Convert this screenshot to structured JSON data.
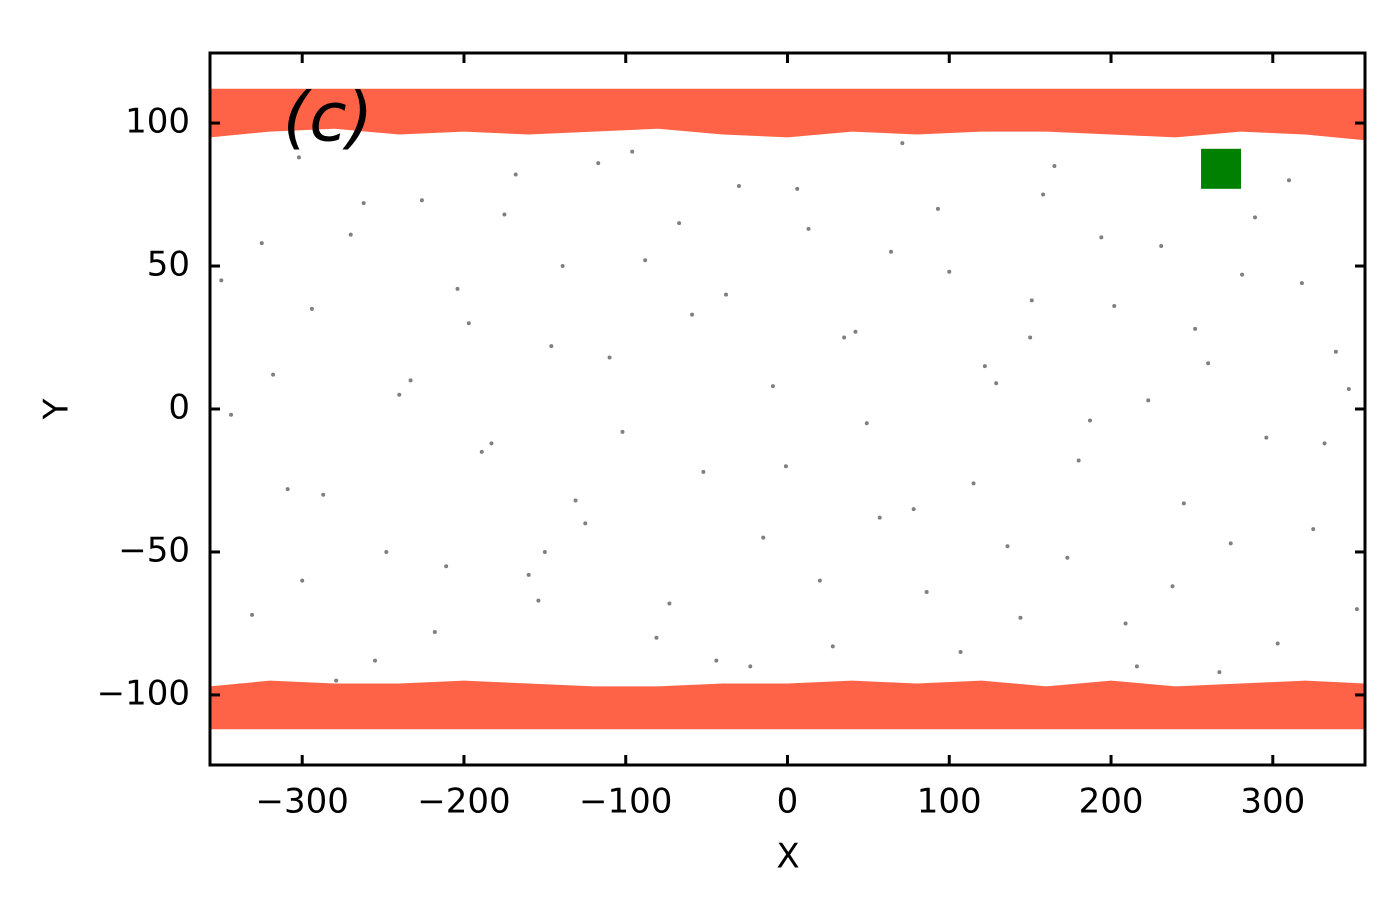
{
  "chart_data": {
    "type": "scatter",
    "annotation": "(c)",
    "xlabel": "X",
    "ylabel": "Y",
    "xlim": [
      -357,
      357
    ],
    "ylim": [
      -124.5,
      124.5
    ],
    "xticks": [
      {
        "value": -300,
        "label": "−300"
      },
      {
        "value": -200,
        "label": "−200"
      },
      {
        "value": -100,
        "label": "−100"
      },
      0,
      100,
      200,
      300
    ],
    "yticks": [
      {
        "value": -100,
        "label": "−100"
      },
      {
        "value": -50,
        "label": "−50"
      },
      0,
      50,
      100
    ],
    "bands": [
      {
        "color": "#ff6347",
        "x": [
          -357,
          -320,
          -280,
          -240,
          -200,
          -160,
          -120,
          -80,
          -40,
          0,
          40,
          80,
          120,
          160,
          200,
          240,
          280,
          320,
          357
        ],
        "y_high": [
          112,
          112,
          112,
          112,
          112,
          112,
          112,
          112,
          112,
          112,
          112,
          112,
          112,
          112,
          112,
          112,
          112,
          112,
          112
        ],
        "y_low": [
          95,
          97,
          98,
          96,
          97,
          96,
          97,
          98,
          96,
          95,
          97,
          96,
          97,
          97,
          96,
          95,
          97,
          96,
          94
        ]
      },
      {
        "color": "#ff6347",
        "x": [
          -357,
          -320,
          -280,
          -240,
          -200,
          -160,
          -120,
          -80,
          -40,
          0,
          40,
          80,
          120,
          160,
          200,
          240,
          280,
          320,
          357
        ],
        "y_high": [
          -97,
          -95,
          -96,
          -96,
          -95,
          -96,
          -97,
          -97,
          -96,
          -96,
          -95,
          -96,
          -95,
          -97,
          -95,
          -97,
          -96,
          -95,
          -96
        ],
        "y_low": [
          -112,
          -112,
          -112,
          -112,
          -112,
          -112,
          -112,
          -112,
          -112,
          -112,
          -112,
          -112,
          -112,
          -112,
          -112,
          -112,
          -112,
          -112,
          -112
        ]
      }
    ],
    "series": [
      {
        "color": "#808080",
        "marker": "dot",
        "x": [
          -350,
          -331,
          -318,
          -302,
          -287,
          -270,
          -255,
          -240,
          -226,
          -211,
          -197,
          -183,
          -168,
          -154,
          -139,
          -125,
          -110,
          -96,
          -81,
          -67,
          -52,
          -38,
          -23,
          -9,
          6,
          20,
          35,
          49,
          64,
          78,
          93,
          107,
          122,
          136,
          151,
          165,
          180,
          194,
          209,
          223,
          238,
          252,
          267,
          281,
          296,
          310,
          325,
          339,
          352,
          -344,
          -325,
          -309,
          -294,
          -279,
          -262,
          -248,
          -233,
          -218,
          -204,
          -189,
          -175,
          -160,
          -146,
          -131,
          -117,
          -102,
          -88,
          -73,
          -59,
          -44,
          -30,
          -15,
          -1,
          13,
          28,
          42,
          57,
          71,
          86,
          100,
          115,
          129,
          144,
          158,
          173,
          187,
          202,
          216,
          231,
          245,
          260,
          274,
          289,
          303,
          318,
          332,
          347,
          -300,
          -150,
          150
        ],
        "values": [
          45,
          -72,
          12,
          88,
          -30,
          61,
          -88,
          5,
          73,
          -55,
          30,
          -12,
          82,
          -67,
          50,
          -40,
          18,
          90,
          -80,
          65,
          -22,
          40,
          -90,
          8,
          77,
          -60,
          25,
          -5,
          55,
          -35,
          70,
          -85,
          15,
          -48,
          38,
          85,
          -18,
          60,
          -75,
          3,
          -62,
          28,
          -92,
          47,
          -10,
          80,
          -42,
          20,
          -70,
          -2,
          58,
          -28,
          35,
          -95,
          72,
          -50,
          10,
          -78,
          42,
          -15,
          68,
          -58,
          22,
          -32,
          86,
          -8,
          52,
          -68,
          33,
          -88,
          78,
          -45,
          -20,
          63,
          -83,
          27,
          -38,
          93,
          -64,
          48,
          -26,
          9,
          -73,
          75,
          -52,
          -4,
          36,
          -90,
          57,
          -33,
          16,
          -47,
          67,
          -82,
          44,
          -12,
          7,
          -60,
          -50,
          25
        ]
      },
      {
        "color": "#008000",
        "marker": "square",
        "x": [
          268
        ],
        "values": [
          84
        ]
      }
    ]
  }
}
